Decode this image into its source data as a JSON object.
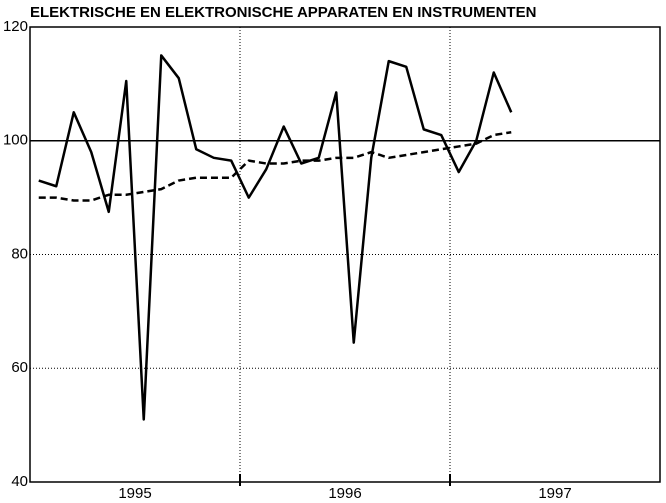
{
  "chart_data": {
    "type": "line",
    "title": "ELEKTRISCHE EN ELEKTRONISCHE APPARATEN EN INSTRUMENTEN",
    "categories": [
      null,
      null,
      null,
      null,
      null,
      null,
      null,
      null,
      null,
      null,
      null,
      null,
      null,
      null,
      null,
      null,
      null,
      null,
      null,
      null,
      null,
      null,
      null,
      null,
      null,
      null,
      null,
      null,
      null,
      null,
      null,
      null,
      null,
      null,
      null,
      null
    ],
    "year_labels": [
      "1995",
      "1996",
      "1997"
    ],
    "series": [
      {
        "color": "#000000",
        "dash": "solid",
        "values": [
          93,
          92,
          105,
          98,
          87.5,
          110.5,
          51,
          115,
          111,
          98.5,
          97,
          96.5,
          90,
          95,
          102.5,
          96,
          97,
          108.5,
          64.5,
          97,
          114,
          113,
          102,
          101,
          94.5,
          100,
          112,
          105,
          null,
          null,
          null,
          null,
          null,
          null,
          null,
          null
        ]
      },
      {
        "color": "#000000",
        "dash": "dashed",
        "values": [
          90,
          90,
          89.5,
          89.5,
          90.5,
          90.5,
          91,
          91.5,
          93,
          93.5,
          93.5,
          93.5,
          96.5,
          96,
          96,
          96.5,
          96.5,
          97,
          97,
          98,
          97,
          97.5,
          98,
          98.5,
          99,
          99.5,
          101,
          101.5,
          null,
          null,
          null,
          null,
          null,
          null,
          null,
          null
        ]
      }
    ],
    "ylim": [
      40,
      120
    ],
    "yticks": [
      40,
      60,
      80,
      100,
      120
    ],
    "reference_line": 100,
    "grid": true
  }
}
